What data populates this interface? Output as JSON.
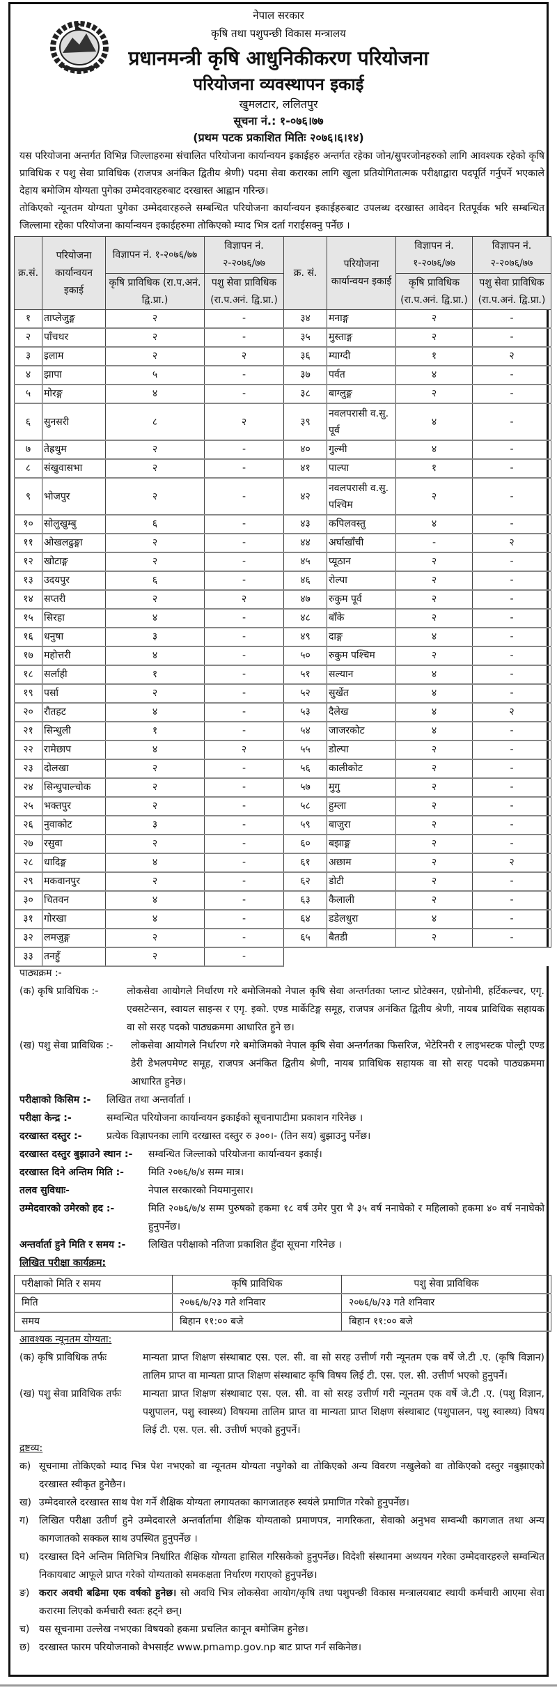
{
  "header": {
    "government": "नेपाल सरकार",
    "ministry": "कृषि तथा पशुपन्छी विकास मन्त्रालय",
    "project": "प्रधानमन्त्री कृषि आधुनिकीकरण परियोजना",
    "unit": "परियोजना व्यवस्थापन इकाई",
    "location": "खुमलटार, ललितपुर",
    "notice_no": "सूचना नं.: १-०७६।७७",
    "published": "(प्रथम पटक प्रकाशित मितिः २०७६।६।१४)",
    "emblem": "nepal-government-emblem"
  },
  "intro": [
    "यस परियोजना अन्तर्गत विभिन्न जिल्लाहरुमा संचालित परियोजना कार्यान्वयन इकाईहरु अन्तर्गत रहेका जोन/सुपरजोनहरुको लागि आवश्यक रहेको कृषि प्राविधिक र पशु सेवा प्राविधिक (राजपत्र अनंकित द्वितीय श्रेणी) पदमा सेवा करारका लागि खुला प्रतियोगितात्मक परीक्षाद्वारा पदपूर्ति गर्नुपर्ने भएकाले देहाय बमोजिम योग्यता पुगेका उम्मेदवारहरुबाट दरखास्त आह्वान गरिन्छ।",
    "तोकिएको न्यूनतम योग्यता पुगेका उम्मेदवारहरुले सम्बन्धित परियोजना कार्यान्वयन इकाईहरुबाट उपलब्ध दरखास्त आवेदन रितपूर्वक भरि सम्बन्धित जिल्लामा रहेका परियोजना कार्यान्वयन इकाईहरुमा तोकिएको म्याद भित्र दर्ता गराईसक्नु पर्नेछ ।"
  ],
  "table": {
    "headers": {
      "sn_left": "क्र.सं.",
      "sn_right": "क्र. सं.",
      "unit": "परियोजना कार्यान्वयन इकाई",
      "ad1": "विज्ञापन नं. १-२०७६/७७",
      "ad2": "विज्ञापन नं. २-२०७६/७७",
      "post1": "कृषि प्राविधिक (रा.प.अनं. द्वि.प्रा.)",
      "post2": "पशु सेवा प्राविधिक (रा.प.अनं. द्वि.प्रा.)"
    },
    "left": [
      [
        "१",
        "ताप्लेजुङ्ग",
        "२",
        "-"
      ],
      [
        "२",
        "पाँचथर",
        "२",
        "-"
      ],
      [
        "३",
        "इलाम",
        "२",
        "२"
      ],
      [
        "४",
        "झापा",
        "५",
        "-"
      ],
      [
        "५",
        "मोरङ्ग",
        "४",
        "-"
      ],
      [
        "६",
        "सुनसरी",
        "८",
        "२"
      ],
      [
        "७",
        "तेह्रथुम",
        "२",
        "-"
      ],
      [
        "८",
        "संखुवासभा",
        "२",
        "-"
      ],
      [
        "९",
        "भोजपुर",
        "२",
        "-"
      ],
      [
        "१०",
        "सोलुखुम्बु",
        "६",
        "-"
      ],
      [
        "११",
        "ओखलढुङ्गा",
        "२",
        "-"
      ],
      [
        "१२",
        "खोटाङ्ग",
        "२",
        "-"
      ],
      [
        "१३",
        "उदयपुर",
        "६",
        "-"
      ],
      [
        "१४",
        "सप्तरी",
        "२",
        "२"
      ],
      [
        "१५",
        "सिरहा",
        "४",
        "-"
      ],
      [
        "१६",
        "धनुषा",
        "३",
        "-"
      ],
      [
        "१७",
        "महोत्तरी",
        "४",
        "-"
      ],
      [
        "१८",
        "सर्लाही",
        "१",
        "-"
      ],
      [
        "१९",
        "पर्सा",
        "२",
        "-"
      ],
      [
        "२०",
        "रौतहट",
        "४",
        "-"
      ],
      [
        "२१",
        "सिन्धुली",
        "१",
        "-"
      ],
      [
        "२२",
        "रामेछाप",
        "४",
        "२"
      ],
      [
        "२३",
        "दोलखा",
        "२",
        "-"
      ],
      [
        "२४",
        "सिन्धुपाल्चोक",
        "२",
        "-"
      ],
      [
        "२५",
        "भक्तपुर",
        "२",
        "-"
      ],
      [
        "२६",
        "नुवाकोट",
        "३",
        "-"
      ],
      [
        "२७",
        "रसुवा",
        "२",
        "-"
      ],
      [
        "२८",
        "धादिङ्ग",
        "४",
        "-"
      ],
      [
        "२९",
        "मकवानपुर",
        "२",
        "-"
      ],
      [
        "३०",
        "चितवन",
        "४",
        "-"
      ],
      [
        "३१",
        "गोरखा",
        "४",
        "-"
      ],
      [
        "३२",
        "लमजुङ्ग",
        "२",
        "-"
      ],
      [
        "३३",
        "तनहुँ",
        "२",
        "-"
      ]
    ],
    "right": [
      [
        "३४",
        "मनाङ्ग",
        "२",
        "-"
      ],
      [
        "३५",
        "मुस्ताङ्ग",
        "२",
        "-"
      ],
      [
        "३६",
        "म्याग्दी",
        "१",
        "२"
      ],
      [
        "३७",
        "पर्वत",
        "४",
        "-"
      ],
      [
        "३८",
        "बाग्लुङ्ग",
        "२",
        "-"
      ],
      [
        "३९",
        "नवलपरासी व.सु. पूर्व",
        "४",
        "-"
      ],
      [
        "४०",
        "गुल्मी",
        "४",
        "-"
      ],
      [
        "४१",
        "पाल्पा",
        "१",
        "-"
      ],
      [
        "४२",
        "नवलपरासी व.सु. पश्चिम",
        "२",
        "-"
      ],
      [
        "४३",
        "कपिलवस्तु",
        "४",
        "-"
      ],
      [
        "४४",
        "अर्घाखाँची",
        "-",
        "२"
      ],
      [
        "४५",
        "प्यूठान",
        "२",
        "-"
      ],
      [
        "४६",
        "रोल्पा",
        "२",
        "-"
      ],
      [
        "४७",
        "रुकुम पूर्व",
        "२",
        "-"
      ],
      [
        "४८",
        "बाँके",
        "२",
        "-"
      ],
      [
        "४९",
        "दाङ्ग",
        "४",
        "-"
      ],
      [
        "५०",
        "रुकुम पश्चिम",
        "२",
        "-"
      ],
      [
        "५१",
        "सल्यान",
        "४",
        "-"
      ],
      [
        "५२",
        "सुर्खेत",
        "४",
        "-"
      ],
      [
        "५३",
        "दैलेख",
        "४",
        "२"
      ],
      [
        "५४",
        "जाजरकोट",
        "४",
        "-"
      ],
      [
        "५५",
        "डोल्पा",
        "२",
        "-"
      ],
      [
        "५६",
        "कालीकोट",
        "२",
        "-"
      ],
      [
        "५७",
        "मुगु",
        "२",
        "-"
      ],
      [
        "५८",
        "हुम्ला",
        "२",
        "-"
      ],
      [
        "५९",
        "बाजुरा",
        "२",
        "-"
      ],
      [
        "६०",
        "बझाङ्ग",
        "२",
        "-"
      ],
      [
        "६१",
        "अछाम",
        "२",
        "२"
      ],
      [
        "६२",
        "डोटी",
        "२",
        "-"
      ],
      [
        "६३",
        "कैलाली",
        "२",
        "-"
      ],
      [
        "६४",
        "डडेलधुरा",
        "४",
        "-"
      ],
      [
        "६५",
        "बैतडी",
        "२",
        "-"
      ]
    ]
  },
  "syllabus": {
    "title": "पाठ्यक्रम :-",
    "ka_label": "(क) कृषि प्राविधिक :-",
    "ka_text": "लोकसेवा आयोगले निर्धारण गरे बमोजिमको नेपाल कृषि सेवा अन्तर्गतका प्लान्ट प्रोटेक्सन, एग्रोनोमी, हर्टिकल्चर, एगृ. एक्सटेन्सन, स्वायल साइन्स र एगृ. इको. एण्ड मार्केटिङ्ग समूह, राजपत्र अनंकित द्वितीय श्रेणी, नायब प्राविधिक सहायक वा सो सरह पदको पाठ्यक्रममा आधारित हुने छ।",
    "kha_label": "(ख) पशु सेवा प्राविधिक :-",
    "kha_text": "लोकसेवा आयोगले निर्धारण गरे बमोजिमको नेपाल कृषि सेवा अन्तर्गतका फिसरिज, भेटेरिनरी र लाइभस्टक पोल्ट्री एण्ड डेरी डेभलपमेण्ट समूह, राजपत्र अनंकित द्वितीय श्रेणी, नायब प्राविधिक सहायक वा सो सरह पदको पाठ्यक्रममा आधारित हुनेछ।"
  },
  "details": [
    {
      "label": "परीक्षाको किसिम :-",
      "text": "लिखित तथा अन्तर्वार्ता ।"
    },
    {
      "label": "परीक्षा केन्द्र :-",
      "text": "सम्वन्धित परियोजना कार्यान्वयन इकाईको सूचनापाटीमा प्रकाशन गरिनेछ ।"
    },
    {
      "label": "दरखास्त दस्तुर :-",
      "text": "प्रत्येक विज्ञापनका लागि दरखास्त दस्तुर रु ३००।- (तिन सय) बुझाउनु पर्नेछ।"
    },
    {
      "label": "दरखास्त दस्तुर बुझाउने स्थान :-",
      "text": "सम्वन्धित जिल्लाको परियोजना कार्यान्वयन इकाई।"
    },
    {
      "label": "दरखास्त दिने अन्तिम मिति :-",
      "text": "मिति २०७६/७/४ सम्म मात्र।"
    },
    {
      "label": "तलव सुविधाः-",
      "text": "नेपाल सरकारको नियमानुसार।"
    },
    {
      "label": "उम्मेदवारको उमेरको हद :-",
      "text": "मिति २०७६/७/४ सम्म पुरुषको हकमा १८ वर्ष उमेर पुरा भै ३५ वर्ष ननाघेको र महिलाको हकमा ४० वर्ष ननाघेको हुनुपर्नेछ।"
    },
    {
      "label": "अन्तर्वार्ता हुने मिति र समय :-",
      "text": "लिखित परीक्षाको नतिजा प्रकाशित हुँदा सूचना गरिनेछ ।"
    }
  ],
  "exam": {
    "title": "लिखित परीक्षा कार्यक्रम:",
    "header": [
      "परीक्षाको मिति र समय",
      "कृषि प्राविधिक",
      "पशु सेवा प्राविधिक"
    ],
    "date_row": [
      "मिति",
      "२०७६/७/२३ गते शनिवार",
      "२०७६/७/२३ गते शनिवार"
    ],
    "time_row": [
      "समय",
      "बिहान ११:०० बजे",
      "बिहान ११:०० बजे"
    ]
  },
  "qualification": {
    "title": "आवश्यक न्यूनतम योग्यता:",
    "ka_label": "(क) कृषि प्राविधिक तर्फः",
    "ka_text": "मान्यता प्राप्त शिक्षण संस्थाबाट एस. एल. सी. वा सो सरह उत्तीर्ण गरी न्यूनतम एक वर्षे जे.टी .ए. (कृषि विज्ञान) तालिम प्राप्त वा मान्यता प्राप्त शिक्षण संस्थाबाट कृषि विषय लिई टी. एस. एल. सी. उत्तीर्ण भएको हुनुपर्ने।",
    "kha_label": "(ख) पशु सेवा प्राविधिक तर्फः",
    "kha_text": "मान्यता प्राप्त शिक्षण संस्थाबाट एस. एल. सी. वा सो सरह उत्तीर्ण गरी न्यूनतम एक वर्षे जे.टी .ए. (पशु विज्ञान, पशुपालन, पशु स्वास्थ्य) विषयमा तालिम प्राप्त वा मान्यता प्राप्त शिक्षण संस्थाबाट (पशुपालन, पशु स्वास्थ्य) विषय लिई टी. एस. एल. सी. उत्तीर्ण भएको हुनुपर्ने।"
  },
  "notes": {
    "title": "द्रष्टव्य:",
    "items": [
      {
        "marker": "क)",
        "text": "सूचनामा तोकिएको म्याद भित्र पेश नभएको वा न्यूनतम योग्यता नपुगेको वा तोकिएको अन्य विवरण नखुलेको वा तोकिएको दस्तुर नबुझाएको दरखास्त स्वीकृत हुनेछैन।"
      },
      {
        "marker": "ख)",
        "text": "उम्मेदवारले दरखास्त साथ पेश गर्ने शैक्षिक योग्यता लगायतका कागजातहरु स्वयंले प्रमाणित गरेको हुनुपर्नेछ।"
      },
      {
        "marker": "ग)",
        "text": "लिखित परीक्षा उतीर्ण हुने उम्मेदवारले अन्तर्वार्तामा शैक्षिक योग्यताको प्रमाणपत्र, नागरिकता, सेवाको अनुभव सम्वन्धी कागजात तथा अन्य कागजातको सक्कल साथ उपस्थित हुनुपर्नेछ ।"
      },
      {
        "marker": "घ)",
        "text": "दरखास्त दिने अन्तिम मितिभित्र निर्धारित शैक्षिक योग्यता हासिल गरिसकेको हुनुपर्नेछ। विदेशी संस्थानमा अध्ययन गरेका उम्मेदवारहरुले सम्वन्धित निकायबाट आफूले प्राप्त गरेको योग्यताको समकक्षता निर्धारण गराएको हुनुपर्नेछ।"
      },
      {
        "marker": "ङ)",
        "bold": "करार अवधी बढिमा एक वर्षको हुनेछ।",
        "text": " सो अवधि भित्र लोकसेवा आयोग/कृषि तथा पशुपन्छी विकास मन्त्रालयबाट स्थायी कर्मचारी आएमा सेवा करारमा लिएको कर्मचारी स्वतः हट्ने छन्।"
      },
      {
        "marker": "च)",
        "text": "यस सूचनामा उल्लेख नभएका विषयको हकमा प्रचलित कानून बमोजिम हुनेछ।"
      },
      {
        "marker": "छ)",
        "text": "दरखास्त फारम परियोजनाको वेभसाईट www.pmamp.gov.np बाट प्राप्त गर्न सकिनेछ।"
      }
    ]
  }
}
